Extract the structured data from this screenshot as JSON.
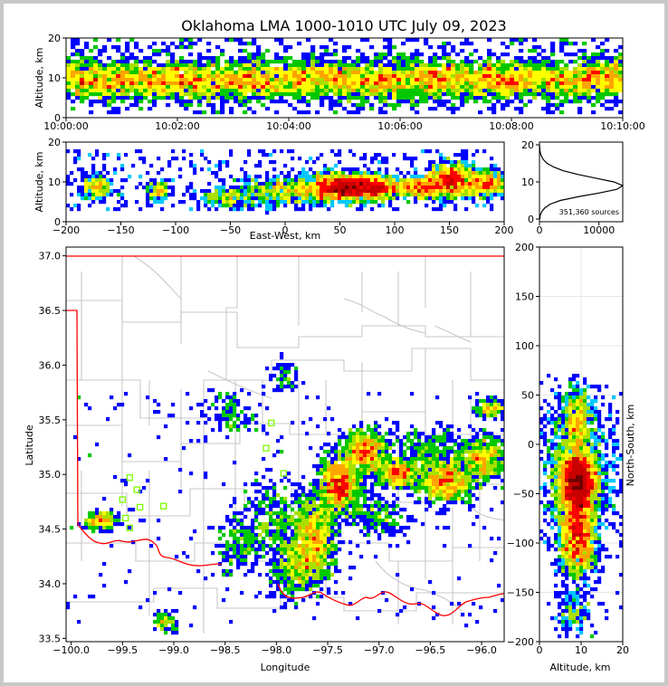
{
  "title": "Oklahoma LMA 1000-1010 UTC July 09, 2023",
  "colors": {
    "border": "#ff0000",
    "county": "#c8c8c8",
    "station": "#7cfc00",
    "frame": "#c8c8c8"
  },
  "chart_data": [
    {
      "panel": "time-altitude",
      "type": "heatmap",
      "xlabel": "",
      "ylabel": "Altitude, km",
      "x_ticks": [
        "10:00:00",
        "10:02:00",
        "10:04:00",
        "10:06:00",
        "10:08:00",
        "10:10:00"
      ],
      "xlim": [
        "10:00:00",
        "10:10:00"
      ],
      "y_ticks": [
        0,
        10,
        20
      ],
      "ylim": [
        0,
        20
      ]
    },
    {
      "panel": "east-west-altitude",
      "type": "heatmap",
      "xlabel": "East-West, km",
      "ylabel": "Altitude, km",
      "x_ticks": [
        -200,
        -150,
        -100,
        -50,
        0,
        50,
        100,
        150,
        200
      ],
      "xlim": [
        -200,
        200
      ],
      "y_ticks": [
        0,
        10,
        20
      ],
      "ylim": [
        0,
        20
      ]
    },
    {
      "panel": "altitude-histogram",
      "type": "line",
      "x_ticks": [
        0,
        10000
      ],
      "xlim": [
        0,
        14000
      ],
      "y_ticks": [
        0,
        10,
        20
      ],
      "ylim": [
        0,
        20
      ],
      "annotation": "351,360 sources",
      "series": [
        {
          "x": [
            60,
            120,
            400,
            900,
            1800,
            3500,
            6500,
            10000,
            13000,
            14000,
            12500,
            9500,
            6500,
            4000,
            2400,
            1300,
            650,
            300,
            120,
            40,
            10
          ],
          "y": [
            0,
            1,
            2,
            3,
            4,
            5,
            6,
            7,
            8,
            9,
            10,
            11,
            12,
            13,
            14,
            15,
            16,
            17,
            18,
            19,
            20
          ]
        }
      ]
    },
    {
      "panel": "plan-view",
      "type": "heatmap",
      "xlabel": "Longitude",
      "ylabel": "Latitude",
      "x_ticks": [
        -100.0,
        -99.5,
        -99.0,
        -98.5,
        -98.0,
        -97.5,
        -97.0,
        -96.5,
        -96.0
      ],
      "xlim": [
        -100.05,
        -95.78
      ],
      "y_ticks": [
        33.5,
        34.0,
        34.5,
        35.0,
        35.5,
        36.0,
        36.5,
        37.0
      ],
      "ylim": [
        33.47,
        37.08
      ],
      "stations": [
        [
          -98.05,
          35.47
        ],
        [
          -98.1,
          35.24
        ],
        [
          -97.93,
          35.01
        ],
        [
          -99.43,
          34.97
        ],
        [
          -99.36,
          34.86
        ],
        [
          -99.5,
          34.77
        ],
        [
          -99.33,
          34.7
        ],
        [
          -99.1,
          34.71
        ],
        [
          -99.47,
          34.6
        ],
        [
          -99.43,
          34.51
        ]
      ]
    },
    {
      "panel": "altitude-north-south",
      "type": "heatmap",
      "xlabel": "Altitude, km",
      "ylabel": "North-South, km",
      "x_ticks": [
        0,
        10,
        20
      ],
      "xlim": [
        0,
        20
      ],
      "y_ticks": [
        -200,
        -150,
        -100,
        -50,
        0,
        50,
        100,
        150,
        200
      ],
      "ylim": [
        -200,
        200
      ]
    }
  ]
}
